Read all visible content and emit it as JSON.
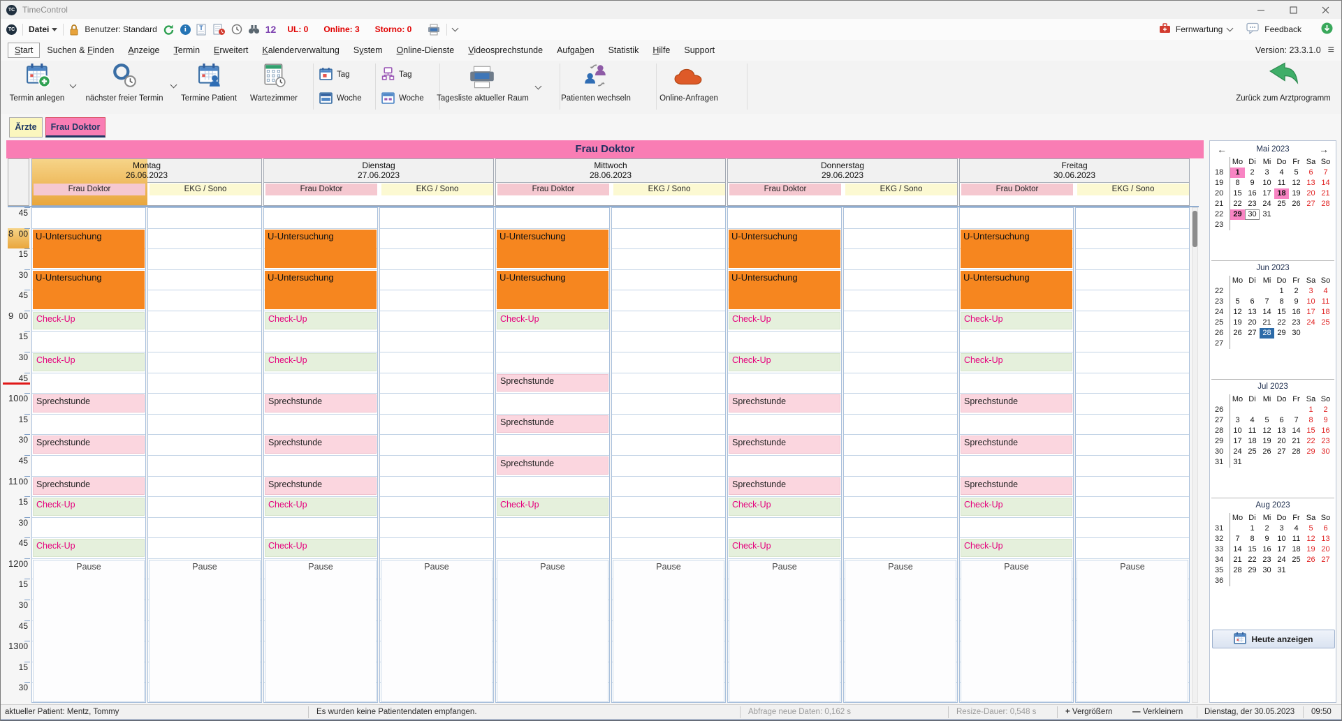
{
  "titlebar": {
    "title": "TimeControl"
  },
  "quickbar": {
    "file_menu": "Datei",
    "user": "Benutzer: Standard",
    "counter_badge": "12",
    "ul": "UL: 0",
    "online": "Online: 3",
    "storno": "Storno: 0",
    "remote": "Fernwartung",
    "feedback": "Feedback"
  },
  "menu": {
    "version": "Version: 23.3.1.0",
    "items": [
      {
        "label": "Start",
        "underline": 0,
        "active": true
      },
      {
        "label": "Suchen & Finden",
        "underline": 9,
        "active": false
      },
      {
        "label": "Anzeige",
        "underline": 0,
        "active": false
      },
      {
        "label": "Termin",
        "underline": 0,
        "active": false
      },
      {
        "label": "Erweitert",
        "underline": 0,
        "active": false
      },
      {
        "label": "Kalenderverwaltung",
        "underline": 0,
        "active": false
      },
      {
        "label": "System",
        "underline": 1,
        "active": false
      },
      {
        "label": "Online-Dienste",
        "underline": 0,
        "active": false
      },
      {
        "label": "Videosprechstunde",
        "underline": 0,
        "active": false
      },
      {
        "label": "Aufgaben",
        "underline": 5,
        "active": false
      },
      {
        "label": "Statistik",
        "underline": -1,
        "active": false
      },
      {
        "label": "Hilfe",
        "underline": 0,
        "active": false
      },
      {
        "label": "Support",
        "underline": -1,
        "active": false
      }
    ]
  },
  "ribbon": {
    "new_appointment": "Termin anlegen",
    "next_free": "nächster freier Termin",
    "patient_appointments": "Termine Patient",
    "waiting_room": "Wartezimmer",
    "day_label": "Tag",
    "week_label": "Woche",
    "day_list_room": "Tagesliste aktueller Raum",
    "switch_patient": "Patienten wechseln",
    "online_requests": "Online-Anfragen",
    "back_to_pvs": "Zurück zum Arztprogramm"
  },
  "tabs": [
    {
      "label": "Ärzte",
      "active": false
    },
    {
      "label": "Frau Doktor",
      "active": true
    }
  ],
  "calendar": {
    "banner": "Frau Doktor",
    "room_columns": [
      "Frau Doktor",
      "EKG / Sono"
    ],
    "time": {
      "start": "07:45",
      "end": "13:45",
      "slot_minutes": 15,
      "highlighted_slot": "08:00",
      "current_time_marker": "09:45"
    },
    "days": [
      {
        "name": "Montag",
        "date": "26.06.2023",
        "selected": true,
        "doctor": [
          {
            "label": "U-Untersuchung",
            "start": "08:00",
            "end": "08:30",
            "kind": "exam"
          },
          {
            "label": "U-Untersuchung",
            "start": "08:30",
            "end": "09:00",
            "kind": "exam"
          },
          {
            "label": "Check-Up",
            "start": "09:00",
            "end": "09:15",
            "kind": "checkup"
          },
          {
            "label": "Check-Up",
            "start": "09:30",
            "end": "09:45",
            "kind": "checkup"
          },
          {
            "label": "Sprechstunde",
            "start": "10:00",
            "end": "10:15",
            "kind": "consult"
          },
          {
            "label": "Sprechstunde",
            "start": "10:30",
            "end": "10:45",
            "kind": "consult"
          },
          {
            "label": "Sprechstunde",
            "start": "11:00",
            "end": "11:15",
            "kind": "consult"
          },
          {
            "label": "Check-Up",
            "start": "11:15",
            "end": "11:30",
            "kind": "checkup"
          },
          {
            "label": "Check-Up",
            "start": "11:45",
            "end": "12:00",
            "kind": "checkup"
          },
          {
            "label": "Pause",
            "start": "12:00",
            "end": "13:45",
            "kind": "pause"
          }
        ],
        "ekg": [
          {
            "label": "Pause",
            "start": "12:00",
            "end": "13:45",
            "kind": "pause"
          }
        ]
      },
      {
        "name": "Dienstag",
        "date": "27.06.2023",
        "selected": false,
        "doctor": [
          {
            "label": "U-Untersuchung",
            "start": "08:00",
            "end": "08:30",
            "kind": "exam"
          },
          {
            "label": "U-Untersuchung",
            "start": "08:30",
            "end": "09:00",
            "kind": "exam"
          },
          {
            "label": "Check-Up",
            "start": "09:00",
            "end": "09:15",
            "kind": "checkup"
          },
          {
            "label": "Check-Up",
            "start": "09:30",
            "end": "09:45",
            "kind": "checkup"
          },
          {
            "label": "Sprechstunde",
            "start": "10:00",
            "end": "10:15",
            "kind": "consult"
          },
          {
            "label": "Sprechstunde",
            "start": "10:30",
            "end": "10:45",
            "kind": "consult"
          },
          {
            "label": "Sprechstunde",
            "start": "11:00",
            "end": "11:15",
            "kind": "consult"
          },
          {
            "label": "Check-Up",
            "start": "11:15",
            "end": "11:30",
            "kind": "checkup"
          },
          {
            "label": "Check-Up",
            "start": "11:45",
            "end": "12:00",
            "kind": "checkup"
          },
          {
            "label": "Pause",
            "start": "12:00",
            "end": "13:45",
            "kind": "pause"
          }
        ],
        "ekg": [
          {
            "label": "Pause",
            "start": "12:00",
            "end": "13:45",
            "kind": "pause"
          }
        ]
      },
      {
        "name": "Mittwoch",
        "date": "28.06.2023",
        "selected": false,
        "doctor": [
          {
            "label": "U-Untersuchung",
            "start": "08:00",
            "end": "08:30",
            "kind": "exam"
          },
          {
            "label": "U-Untersuchung",
            "start": "08:30",
            "end": "09:00",
            "kind": "exam"
          },
          {
            "label": "Check-Up",
            "start": "09:00",
            "end": "09:15",
            "kind": "checkup"
          },
          {
            "label": "Sprechstunde",
            "start": "09:45",
            "end": "10:00",
            "kind": "consult"
          },
          {
            "label": "Sprechstunde",
            "start": "10:15",
            "end": "10:30",
            "kind": "consult"
          },
          {
            "label": "Sprechstunde",
            "start": "10:45",
            "end": "11:00",
            "kind": "consult"
          },
          {
            "label": "Check-Up",
            "start": "11:15",
            "end": "11:30",
            "kind": "checkup"
          },
          {
            "label": "Pause",
            "start": "12:00",
            "end": "13:45",
            "kind": "pause"
          }
        ],
        "ekg": [
          {
            "label": "Pause",
            "start": "12:00",
            "end": "13:45",
            "kind": "pause"
          }
        ]
      },
      {
        "name": "Donnerstag",
        "date": "29.06.2023",
        "selected": false,
        "doctor": [
          {
            "label": "U-Untersuchung",
            "start": "08:00",
            "end": "08:30",
            "kind": "exam"
          },
          {
            "label": "U-Untersuchung",
            "start": "08:30",
            "end": "09:00",
            "kind": "exam"
          },
          {
            "label": "Check-Up",
            "start": "09:00",
            "end": "09:15",
            "kind": "checkup"
          },
          {
            "label": "Check-Up",
            "start": "09:30",
            "end": "09:45",
            "kind": "checkup"
          },
          {
            "label": "Sprechstunde",
            "start": "10:00",
            "end": "10:15",
            "kind": "consult"
          },
          {
            "label": "Sprechstunde",
            "start": "10:30",
            "end": "10:45",
            "kind": "consult"
          },
          {
            "label": "Sprechstunde",
            "start": "11:00",
            "end": "11:15",
            "kind": "consult"
          },
          {
            "label": "Check-Up",
            "start": "11:15",
            "end": "11:30",
            "kind": "checkup"
          },
          {
            "label": "Check-Up",
            "start": "11:45",
            "end": "12:00",
            "kind": "checkup"
          },
          {
            "label": "Pause",
            "start": "12:00",
            "end": "13:45",
            "kind": "pause"
          }
        ],
        "ekg": [
          {
            "label": "Pause",
            "start": "12:00",
            "end": "13:45",
            "kind": "pause"
          }
        ]
      },
      {
        "name": "Freitag",
        "date": "30.06.2023",
        "selected": false,
        "doctor": [
          {
            "label": "U-Untersuchung",
            "start": "08:00",
            "end": "08:30",
            "kind": "exam"
          },
          {
            "label": "U-Untersuchung",
            "start": "08:30",
            "end": "09:00",
            "kind": "exam"
          },
          {
            "label": "Check-Up",
            "start": "09:00",
            "end": "09:15",
            "kind": "checkup"
          },
          {
            "label": "Check-Up",
            "start": "09:30",
            "end": "09:45",
            "kind": "checkup"
          },
          {
            "label": "Sprechstunde",
            "start": "10:00",
            "end": "10:15",
            "kind": "consult"
          },
          {
            "label": "Sprechstunde",
            "start": "10:30",
            "end": "10:45",
            "kind": "consult"
          },
          {
            "label": "Sprechstunde",
            "start": "11:00",
            "end": "11:15",
            "kind": "consult"
          },
          {
            "label": "Check-Up",
            "start": "11:15",
            "end": "11:30",
            "kind": "checkup"
          },
          {
            "label": "Check-Up",
            "start": "11:45",
            "end": "12:00",
            "kind": "checkup"
          },
          {
            "label": "Pause",
            "start": "12:00",
            "end": "13:45",
            "kind": "pause"
          }
        ],
        "ekg": [
          {
            "label": "Pause",
            "start": "12:00",
            "end": "13:45",
            "kind": "pause"
          }
        ]
      }
    ]
  },
  "minimap": {
    "weekdays": [
      "Mo",
      "Di",
      "Mi",
      "Do",
      "Fr",
      "Sa",
      "So"
    ],
    "today_button": "Heute anzeigen",
    "months": [
      {
        "title": "Mai 2023",
        "nav": true,
        "weeks": [
          {
            "num": "18",
            "days": [
              "1!",
              "2",
              "3",
              "4",
              "5",
              "6*",
              "7*"
            ]
          },
          {
            "num": "19",
            "days": [
              "8",
              "9",
              "10",
              "11",
              "12",
              "13*",
              "14*"
            ]
          },
          {
            "num": "20",
            "days": [
              "15",
              "16",
              "17",
              "18!",
              "19",
              "20*",
              "21*"
            ]
          },
          {
            "num": "21",
            "days": [
              "22",
              "23",
              "24",
              "25",
              "26",
              "27*",
              "28*"
            ]
          },
          {
            "num": "22",
            "days": [
              "29!",
              "30@",
              "31",
              "",
              "",
              "",
              ""
            ]
          },
          {
            "num": "23",
            "days": [
              "",
              "",
              "",
              "",
              "",
              "",
              ""
            ]
          }
        ]
      },
      {
        "title": "Jun 2023",
        "nav": false,
        "weeks": [
          {
            "num": "22",
            "days": [
              "",
              "",
              "",
              "1",
              "2",
              "3*",
              "4*"
            ]
          },
          {
            "num": "23",
            "days": [
              "5",
              "6",
              "7",
              "8",
              "9",
              "10*",
              "11*"
            ]
          },
          {
            "num": "24",
            "days": [
              "12",
              "13",
              "14",
              "15",
              "16",
              "17*",
              "18*"
            ]
          },
          {
            "num": "25",
            "days": [
              "19",
              "20",
              "21",
              "22",
              "23",
              "24*",
              "25*"
            ]
          },
          {
            "num": "26",
            "days": [
              "26",
              "27",
              "28$",
              "29",
              "30",
              "",
              ""
            ]
          },
          {
            "num": "27",
            "days": [
              "",
              "",
              "",
              "",
              "",
              "",
              ""
            ]
          }
        ]
      },
      {
        "title": "Jul 2023",
        "nav": false,
        "weeks": [
          {
            "num": "26",
            "days": [
              "",
              "",
              "",
              "",
              "",
              "1*",
              "2*"
            ]
          },
          {
            "num": "27",
            "days": [
              "3",
              "4",
              "5",
              "6",
              "7",
              "8*",
              "9*"
            ]
          },
          {
            "num": "28",
            "days": [
              "10",
              "11",
              "12",
              "13",
              "14",
              "15*",
              "16*"
            ]
          },
          {
            "num": "29",
            "days": [
              "17",
              "18",
              "19",
              "20",
              "21",
              "22*",
              "23*"
            ]
          },
          {
            "num": "30",
            "days": [
              "24",
              "25",
              "26",
              "27",
              "28",
              "29*",
              "30*"
            ]
          },
          {
            "num": "31",
            "days": [
              "31",
              "",
              "",
              "",
              "",
              "",
              ""
            ]
          }
        ]
      },
      {
        "title": "Aug 2023",
        "nav": false,
        "weeks": [
          {
            "num": "31",
            "days": [
              "",
              "1",
              "2",
              "3",
              "4",
              "5*",
              "6*"
            ]
          },
          {
            "num": "32",
            "days": [
              "7",
              "8",
              "9",
              "10",
              "11",
              "12*",
              "13*"
            ]
          },
          {
            "num": "33",
            "days": [
              "14",
              "15",
              "16",
              "17",
              "18",
              "19*",
              "20*"
            ]
          },
          {
            "num": "34",
            "days": [
              "21",
              "22",
              "23",
              "24",
              "25",
              "26*",
              "27*"
            ]
          },
          {
            "num": "35",
            "days": [
              "28",
              "29",
              "30",
              "31",
              "",
              "",
              ""
            ]
          },
          {
            "num": "36",
            "days": [
              "",
              "",
              "",
              "",
              "",
              "",
              ""
            ]
          }
        ]
      }
    ]
  },
  "statusbar": {
    "patient": "aktueller Patient: Mentz, Tommy",
    "message": "Es wurden keine Patientendaten empfangen.",
    "query": "Abfrage neue Daten: 0,162 s",
    "resize": "Resize-Dauer: 0,548 s",
    "zoom_in": "Vergrößern",
    "zoom_out": "Verkleinern",
    "date": "Dienstag, der 30.05.2023",
    "time": "09:50"
  },
  "icons": {
    "back_arrow": "←",
    "forward_arrow": "→",
    "plus": "+",
    "minus": "—",
    "logo": "TC",
    "close": "✕",
    "hamburger": "≡"
  },
  "colors": {
    "accent_pink": "#F97DB4",
    "selected_tan": "#E9A63C",
    "exam_orange": "#F6861F",
    "checkup_bg": "#E5F0DC",
    "checkup_text": "#E5007D",
    "consult_bg": "#FBD6DF",
    "alert_red": "#E00000",
    "selected_day_blue": "#2D6BA8",
    "holiday_pink": "#F884C3",
    "weekend_red": "#E02020",
    "current_time_red": "#E01818"
  }
}
